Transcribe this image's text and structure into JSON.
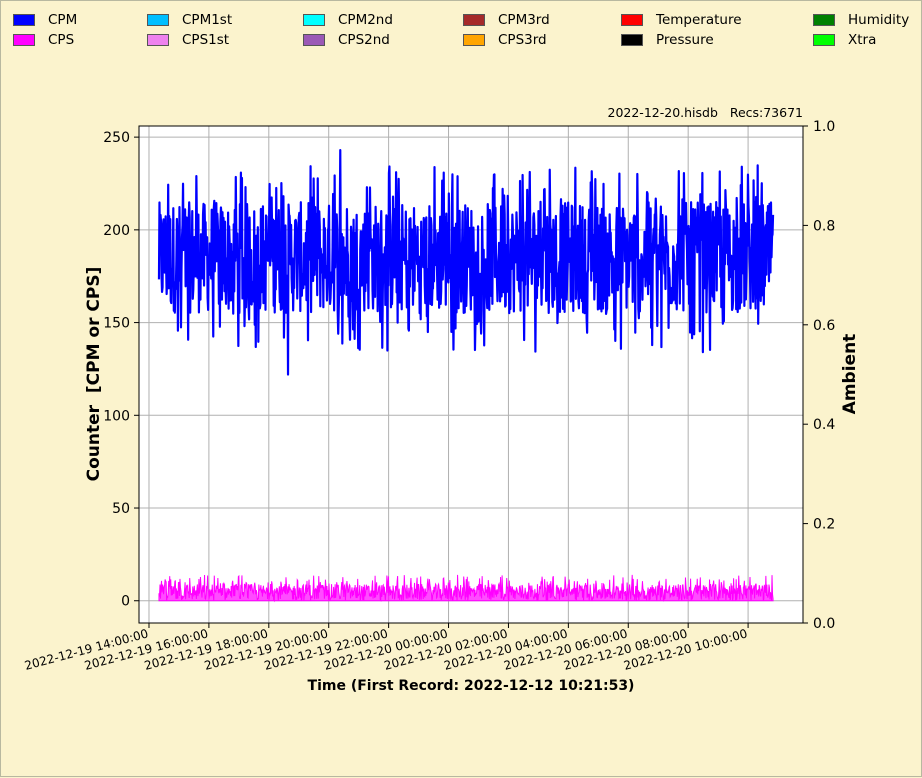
{
  "legend": [
    {
      "label": "CPM",
      "color": "#0000ff"
    },
    {
      "label": "CPS",
      "color": "#ff00ff"
    },
    {
      "label": "CPM1st",
      "color": "#00bfff"
    },
    {
      "label": "CPS1st",
      "color": "#ee82ee"
    },
    {
      "label": "CPM2nd",
      "color": "#00ffff"
    },
    {
      "label": "CPS2nd",
      "color": "#9b59b6"
    },
    {
      "label": "CPM3rd",
      "color": "#a52a2a"
    },
    {
      "label": "CPS3rd",
      "color": "#ffa500"
    },
    {
      "label": "Temperature",
      "color": "#ff0000"
    },
    {
      "label": "Pressure",
      "color": "#000000"
    },
    {
      "label": "Humidity",
      "color": "#008000"
    },
    {
      "label": "Xtra",
      "color": "#00ff00"
    }
  ],
  "file_info": "2022-12-20.hisdb   Recs:73671",
  "chart_data": {
    "type": "line",
    "xlabel": "Time (First Record: 2022-12-12 10:21:53)",
    "ylabel": "Counter  [CPM or CPS]",
    "y2label": "Ambient",
    "ylim": [
      -12,
      256
    ],
    "y2lim": [
      0.0,
      1.0
    ],
    "yticks": [
      "0",
      "50",
      "100",
      "150",
      "200",
      "250"
    ],
    "y2ticks": [
      "0.0",
      "0.2",
      "0.4",
      "0.6",
      "0.8",
      "1.0"
    ],
    "x_start": "2022-12-19 13:40:00",
    "x_end": "2022-12-20 11:50:00",
    "x_ticks": [
      "2022-12-19  14:00:00",
      "2022-12-19  16:00:00",
      "2022-12-19  18:00:00",
      "2022-12-19  20:00:00",
      "2022-12-19  22:00:00",
      "2022-12-20  00:00:00",
      "2022-12-20  02:00:00",
      "2022-12-20  04:00:00",
      "2022-12-20  06:00:00",
      "2022-12-20  08:00:00",
      "2022-12-20  10:00:00"
    ],
    "grid": true,
    "series": [
      {
        "name": "CPM",
        "color": "#0000ff",
        "time_range": [
          "2022-12-19 14:20:00",
          "2022-12-20 10:50:00"
        ],
        "typical_range": [
          155,
          215
        ],
        "min": 122,
        "max": 243,
        "mean": 182
      },
      {
        "name": "CPS",
        "color": "#ff00ff",
        "time_range": [
          "2022-12-19 14:20:00",
          "2022-12-20 10:50:00"
        ],
        "typical_range": [
          0,
          9
        ],
        "min": 0,
        "max": 14,
        "mean": 3
      }
    ]
  }
}
